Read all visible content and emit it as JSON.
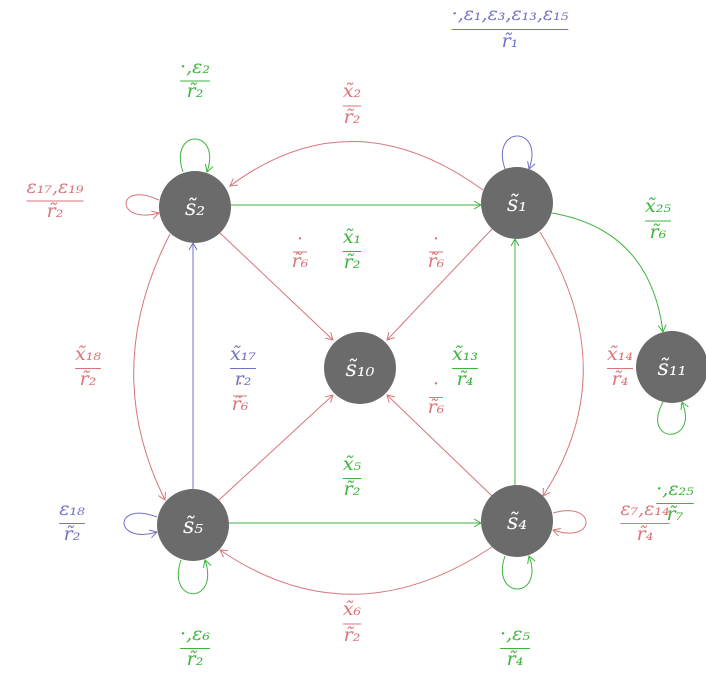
{
  "nodes": [
    {
      "label": "s̃₁"
    },
    {
      "label": "s̃₂"
    },
    {
      "label": "s̃₁₀"
    },
    {
      "label": "s̃₁₁"
    },
    {
      "label": "s̃₄"
    },
    {
      "label": "s̃₅"
    }
  ],
  "edges": [
    {
      "num": "·,ε₁,ε₃,ε₁₃,ε₁₅",
      "den": "r̃₁",
      "color": "#7272c8"
    },
    {
      "num": "·,ε₂",
      "den": "r̃₂",
      "color": "#3db53d"
    },
    {
      "num": "ε₁₇,ε₁₉",
      "den": "r̃₂",
      "color": "#d8767a"
    },
    {
      "num": "x̃₂",
      "den": "r̃₂",
      "color": "#d8767a"
    },
    {
      "num": "x̃₁",
      "den": "r̃₂",
      "color": "#3db53d"
    },
    {
      "num": "·",
      "den": "r̃₆",
      "color": "#d8767a"
    },
    {
      "num": "·",
      "den": "r̃₆",
      "color": "#d8767a"
    },
    {
      "num": "x̃₂₅",
      "den": "r̃₆",
      "color": "#3db53d"
    },
    {
      "num": "x̃₁₄",
      "den": "r̃₄",
      "color": "#d8767a"
    },
    {
      "num": "·,ε₂₅",
      "den": "r̃₇",
      "color": "#3db53d"
    },
    {
      "num": "x̃₁₈",
      "den": "r̃₂",
      "color": "#d8767a"
    },
    {
      "num": "x̃₁₇",
      "den": "r₂",
      "color": "#7272c8"
    },
    {
      "num": "·",
      "den": "r̃₆",
      "color": "#d8767a"
    },
    {
      "num": "·",
      "den": "r̃₆",
      "color": "#d8767a"
    },
    {
      "num": "x̃₁₃",
      "den": "r̃₄",
      "color": "#3db53d"
    },
    {
      "num": "x̃₅",
      "den": "r̃₂",
      "color": "#3db53d"
    },
    {
      "num": "x̃₆",
      "den": "r̃₂",
      "color": "#d8767a"
    },
    {
      "num": "ε₁₈",
      "den": "r̃₂",
      "color": "#7272c8"
    },
    {
      "num": "·,ε₆",
      "den": "r̃₂",
      "color": "#3db53d"
    },
    {
      "num": "ε₇,ε₁₄",
      "den": "r̃₄",
      "color": "#d8767a"
    },
    {
      "num": "·,ε₅",
      "den": "r̃₄",
      "color": "#3db53d"
    }
  ]
}
